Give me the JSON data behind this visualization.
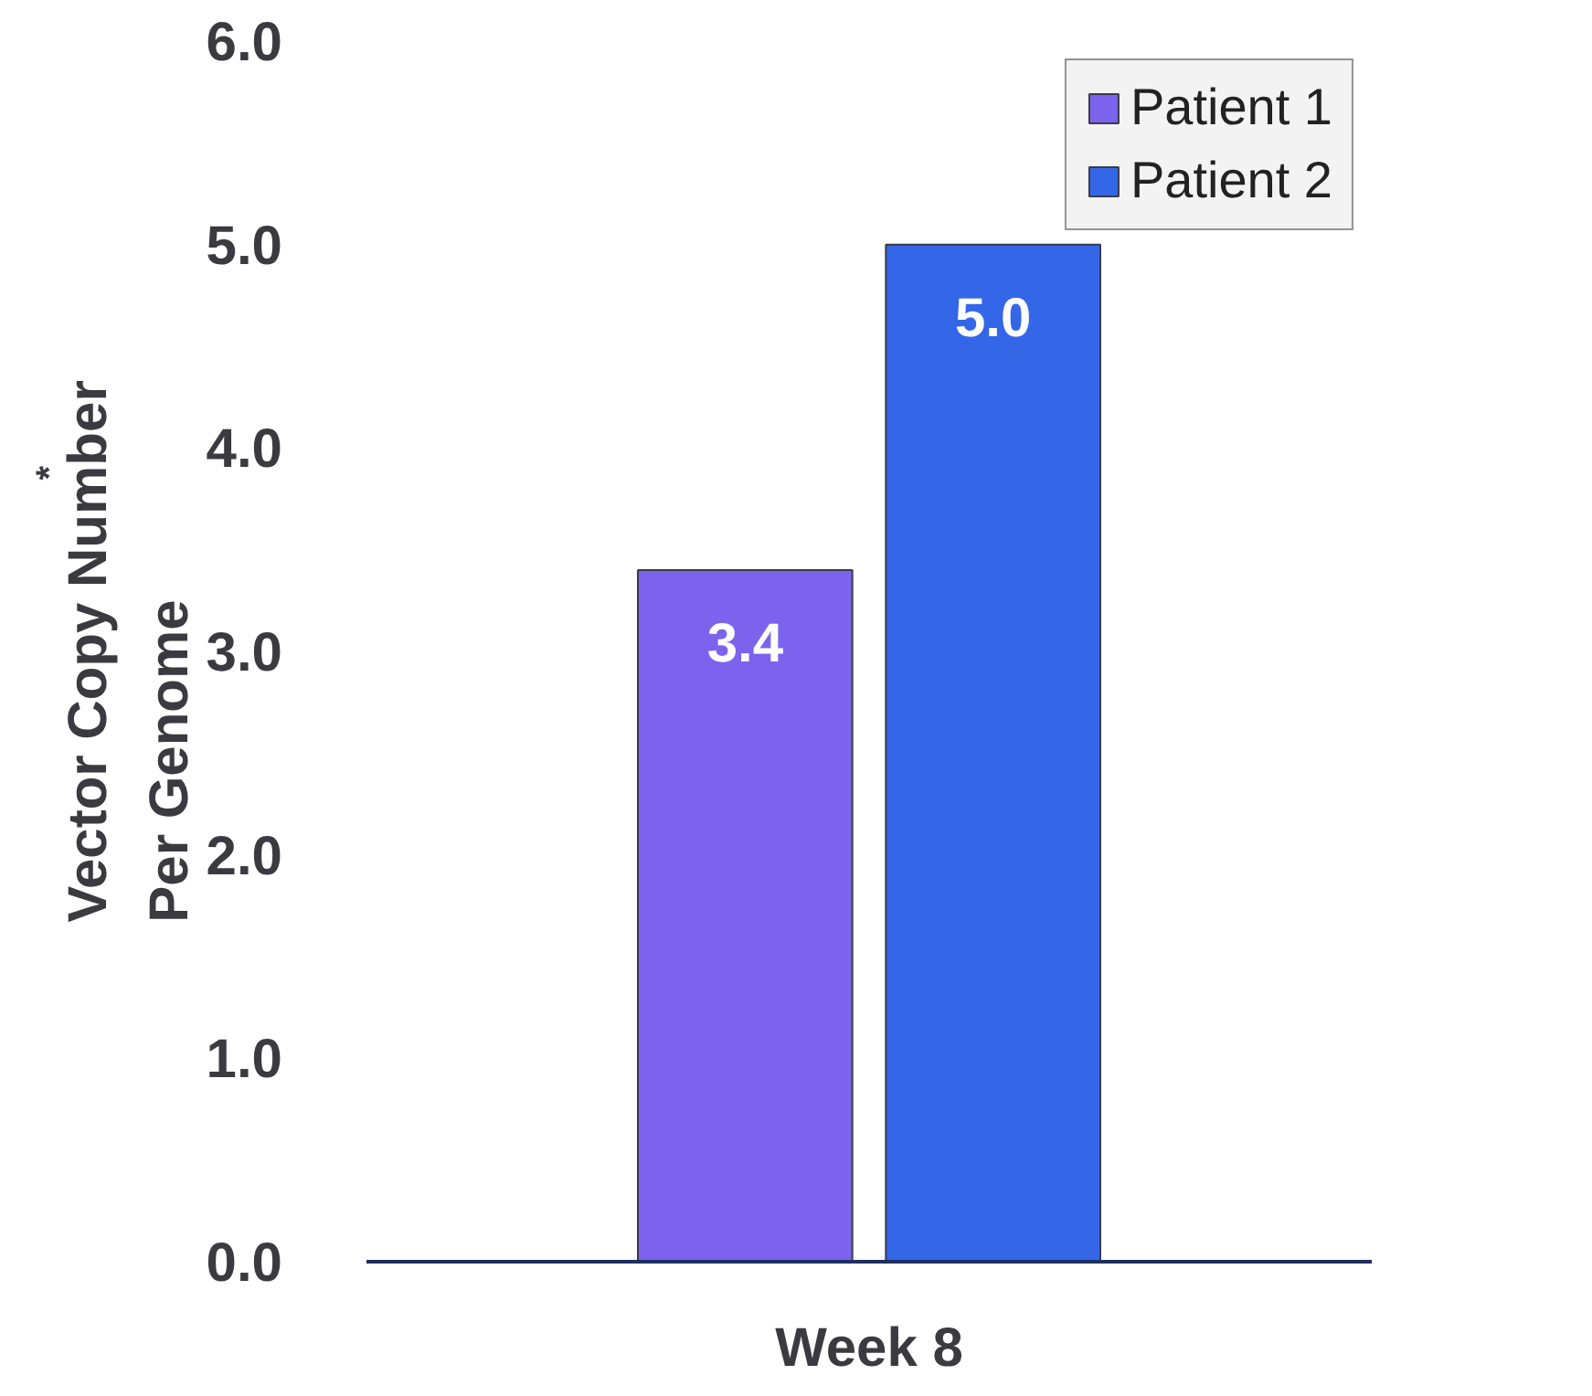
{
  "chart_data": {
    "type": "bar",
    "categories": [
      "Week 8"
    ],
    "series": [
      {
        "name": "Patient 1",
        "color": "#7b63ee",
        "values": [
          3.4
        ],
        "value_labels": [
          "3.4"
        ]
      },
      {
        "name": "Patient 2",
        "color": "#3467e8",
        "values": [
          5.0
        ],
        "value_labels": [
          "5.0"
        ]
      }
    ],
    "ylabel": "Vector Copy Number\nPer Genome$^{*}$",
    "ylim": [
      0,
      6
    ],
    "yticks": [
      {
        "value": 0,
        "label": "0.0"
      },
      {
        "value": 1,
        "label": "1.0"
      },
      {
        "value": 2,
        "label": "2.0"
      },
      {
        "value": 3,
        "label": "3.0"
      },
      {
        "value": 4,
        "label": "4.0"
      },
      {
        "value": 5,
        "label": "5.0"
      },
      {
        "value": 6,
        "label": "6.0"
      }
    ],
    "legend": "top right",
    "grid": false
  }
}
